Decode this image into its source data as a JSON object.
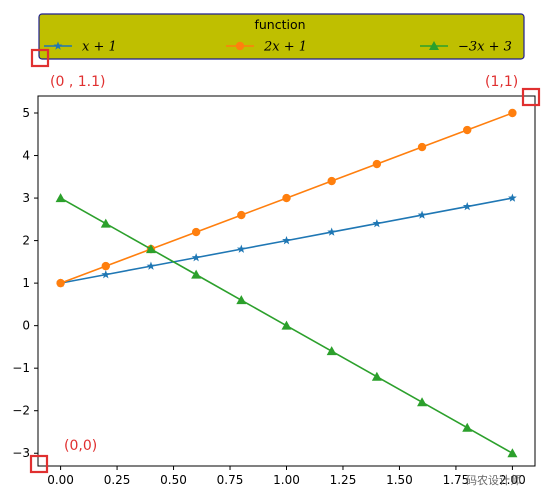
{
  "chart_data": {
    "type": "line",
    "x": [
      0.0,
      0.2,
      0.4,
      0.6,
      0.8,
      1.0,
      1.2,
      1.4,
      1.6,
      1.8,
      2.0
    ],
    "series": [
      {
        "name": "x + 1",
        "color": "#1f77b4",
        "marker": "star",
        "values": [
          1.0,
          1.2,
          1.4,
          1.6,
          1.8,
          2.0,
          2.2,
          2.4,
          2.6,
          2.8,
          3.0
        ]
      },
      {
        "name": "2x + 1",
        "color": "#ff7f0e",
        "marker": "circle",
        "values": [
          1.0,
          1.4,
          1.8,
          2.2,
          2.6,
          3.0,
          3.4,
          3.8,
          4.2,
          4.6,
          5.0
        ]
      },
      {
        "name": "−3x + 3",
        "color": "#2ca02c",
        "marker": "triangle",
        "values": [
          3.0,
          2.4,
          1.8,
          1.2,
          0.6,
          0.0,
          -0.6,
          -1.2,
          -1.8,
          -2.4,
          -3.0
        ]
      }
    ],
    "xlim": [
      -0.1,
      2.1
    ],
    "ylim": [
      -3.3,
      5.4
    ],
    "x_ticks": [
      "0.00",
      "0.25",
      "0.50",
      "0.75",
      "1.00",
      "1.25",
      "1.50",
      "1.75",
      "2.00"
    ],
    "x_tick_values": [
      0,
      0.25,
      0.5,
      0.75,
      1.0,
      1.25,
      1.5,
      1.75,
      2.0
    ],
    "y_ticks": [
      "−3",
      "−2",
      "−1",
      "0",
      "1",
      "2",
      "3",
      "4",
      "5"
    ],
    "y_tick_values": [
      -3,
      -2,
      -1,
      0,
      1,
      2,
      3,
      4,
      5
    ],
    "grid": false,
    "legend": {
      "title": "function",
      "placement": "above-plot",
      "face_color": "#bfbf00",
      "edge_color": "#1f1f8f"
    },
    "annotations": [
      {
        "text": "(0 , 1.1)",
        "color": "#e03030"
      },
      {
        "text": "(1,1)",
        "color": "#e03030"
      },
      {
        "text": "(0,0)",
        "color": "#e03030"
      }
    ]
  },
  "watermark": "码农设计师"
}
